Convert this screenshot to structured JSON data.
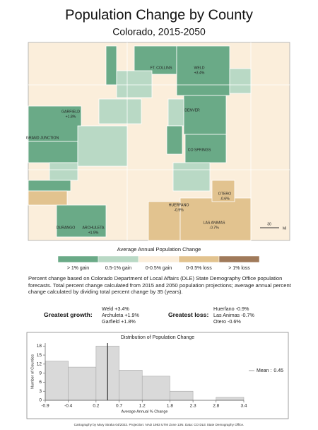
{
  "header": {
    "title": "Population Change by County",
    "subtitle": "Colorado, 2015-2050"
  },
  "map": {
    "labels": [
      {
        "name": "FT. COLLINS"
      },
      {
        "name": "WELD",
        "change": "+3.4%"
      },
      {
        "name": "DENVER"
      },
      {
        "name": "GARFIELD",
        "change": "+1.8%"
      },
      {
        "name": "GRAND JUNCTION"
      },
      {
        "name": "CO SPRINGS"
      },
      {
        "name": "HUERFANO",
        "change": "-0.9%"
      },
      {
        "name": "OTERO",
        "change": "-0.6%"
      },
      {
        "name": "LAS ANIMAS",
        "change": "-0.7%"
      },
      {
        "name": "DURANGO"
      },
      {
        "name": "ARCHULETA",
        "change": "+1.9%"
      }
    ],
    "scale": {
      "distance": 30,
      "unit": "Mi"
    }
  },
  "legend": {
    "title": "Average Annual Population Change",
    "items": [
      {
        "label": "> 1% gain",
        "color": "#6aaa87"
      },
      {
        "label": "0.5-1% gain",
        "color": "#b9d9c5"
      },
      {
        "label": "0-0.5% gain",
        "color": "#fbeedb"
      },
      {
        "label": "0-0.5% loss",
        "color": "#e2c38f"
      },
      {
        "label": "> 1% loss",
        "color": "#a07a5a"
      }
    ]
  },
  "description": "Percent change based on Colorado Department of Local Affairs (DLE) State Demography Office population forecasts. Total percent change calculated from 2015 and 2050 population projections; average annual percent change calculated by dividing total percent change by 35 (years).",
  "extremes": {
    "growth": {
      "label": "Greatest growth:",
      "items": [
        "Weld +3.4%",
        "Archuleta +1.9%",
        "Garfield +1.8%"
      ]
    },
    "loss": {
      "label": "Greatest loss:",
      "items": [
        "Huerfano -0.9%",
        "Las Animas -0.7%",
        "Otero -0.6%"
      ]
    }
  },
  "chart_data": {
    "type": "histogram",
    "title": "Distribution of Population Change",
    "bins": [
      -0.9,
      -0.4,
      0.2,
      0.7,
      1.2,
      1.8,
      2.3,
      2.8,
      3.4
    ],
    "counts": [
      13,
      11,
      18,
      10,
      8,
      3,
      0,
      1
    ],
    "color": "#d9d9d9",
    "x_label": "Average Annual % Change",
    "y_label": "Number of Counties",
    "xlim": [
      -0.9,
      3.4
    ],
    "ylim": [
      0,
      19
    ],
    "xticks": [
      -0.9,
      -0.4,
      0.2,
      0.7,
      1.2,
      1.8,
      2.3,
      2.8,
      3.4
    ],
    "yticks": [
      0,
      3,
      6,
      9,
      12,
      15,
      18
    ],
    "mean": 0.45,
    "mean_label": "Mean :"
  },
  "footer": "Cartography by Mary Straka 04/2022. Projection: NAD 1983 UTM Zone 13N. Data: CO DLE State Demography Office."
}
